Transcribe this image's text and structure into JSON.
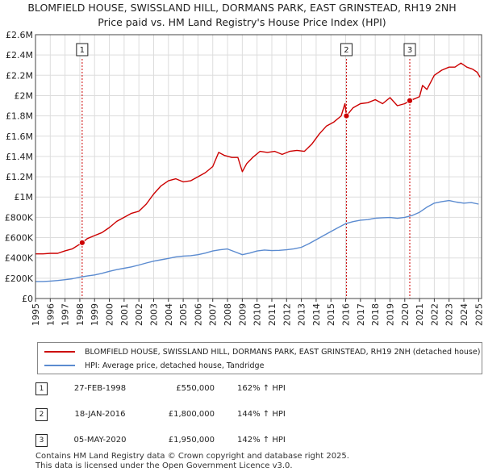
{
  "title_line1": "BLOMFIELD HOUSE, SWISSLAND HILL, DORMANS PARK, EAST GRINSTEAD, RH19 2NH",
  "title_line2": "Price paid vs. HM Land Registry's House Price Index (HPI)",
  "colors": {
    "property": "#cc0000",
    "hpi": "#5b8bd0",
    "marker_line": "#cc0000",
    "grid": "#dddddd"
  },
  "legend": {
    "property_label": "BLOMFIELD HOUSE, SWISSLAND HILL, DORMANS PARK, EAST GRINSTEAD, RH19 2NH (detached house)",
    "hpi_label": "HPI: Average price, detached house, Tandridge"
  },
  "transactions": [
    {
      "num": "1",
      "date": "27-FEB-1998",
      "price": "£550,000",
      "hpi": "162% ↑ HPI"
    },
    {
      "num": "2",
      "date": "18-JAN-2016",
      "price": "£1,800,000",
      "hpi": "144% ↑ HPI"
    },
    {
      "num": "3",
      "date": "05-MAY-2020",
      "price": "£1,950,000",
      "hpi": "142% ↑ HPI"
    }
  ],
  "footer_line1": "Contains HM Land Registry data © Crown copyright and database right 2025.",
  "footer_line2": "This data is licensed under the Open Government Licence v3.0.",
  "chart_data": {
    "type": "line",
    "xlim": [
      1995,
      2025.2
    ],
    "ylim": [
      0,
      2600000
    ],
    "x_ticks": [
      1995,
      1996,
      1997,
      1998,
      1999,
      2000,
      2001,
      2002,
      2003,
      2004,
      2005,
      2006,
      2007,
      2008,
      2009,
      2010,
      2011,
      2012,
      2013,
      2014,
      2015,
      2016,
      2017,
      2018,
      2019,
      2020,
      2021,
      2022,
      2023,
      2024,
      2025
    ],
    "y_ticks": [
      {
        "value": 0,
        "label": "£0"
      },
      {
        "value": 200000,
        "label": "£200K"
      },
      {
        "value": 400000,
        "label": "£400K"
      },
      {
        "value": 600000,
        "label": "£600K"
      },
      {
        "value": 800000,
        "label": "£800K"
      },
      {
        "value": 1000000,
        "label": "£1M"
      },
      {
        "value": 1200000,
        "label": "£1.2M"
      },
      {
        "value": 1400000,
        "label": "£1.4M"
      },
      {
        "value": 1600000,
        "label": "£1.6M"
      },
      {
        "value": 1800000,
        "label": "£1.8M"
      },
      {
        "value": 2000000,
        "label": "£2M"
      },
      {
        "value": 2200000,
        "label": "£2.2M"
      },
      {
        "value": 2400000,
        "label": "£2.4M"
      },
      {
        "value": 2600000,
        "label": "£2.6M"
      }
    ],
    "grid": true,
    "series": [
      {
        "name": "BLOMFIELD HOUSE, SWISSLAND HILL, DORMANS PARK, EAST GRINSTEAD, RH19 2NH (detached house)",
        "color": "#cc0000",
        "x": [
          1995.0,
          1995.5,
          1996.0,
          1996.5,
          1997.0,
          1997.5,
          1998.16,
          1998.5,
          1999.0,
          1999.5,
          2000.0,
          2000.5,
          2001.0,
          2001.5,
          2002.0,
          2002.5,
          2003.0,
          2003.5,
          2004.0,
          2004.5,
          2005.0,
          2005.5,
          2006.0,
          2006.5,
          2007.0,
          2007.4,
          2007.8,
          2008.3,
          2008.7,
          2009.0,
          2009.3,
          2009.7,
          2010.2,
          2010.7,
          2011.2,
          2011.7,
          2012.2,
          2012.7,
          2013.2,
          2013.7,
          2014.2,
          2014.7,
          2015.2,
          2015.7,
          2015.95,
          2016.05,
          2016.5,
          2017.0,
          2017.5,
          2018.0,
          2018.5,
          2019.0,
          2019.5,
          2020.0,
          2020.34,
          2020.7,
          2021.0,
          2021.2,
          2021.5,
          2022.0,
          2022.5,
          2023.0,
          2023.4,
          2023.8,
          2024.2,
          2024.6,
          2024.9,
          2025.1
        ],
        "values": [
          440000,
          440000,
          445000,
          445000,
          470000,
          490000,
          550000,
          590000,
          620000,
          650000,
          700000,
          760000,
          800000,
          840000,
          860000,
          930000,
          1030000,
          1110000,
          1160000,
          1180000,
          1150000,
          1160000,
          1200000,
          1240000,
          1300000,
          1440000,
          1410000,
          1390000,
          1390000,
          1250000,
          1330000,
          1390000,
          1450000,
          1440000,
          1450000,
          1420000,
          1450000,
          1460000,
          1450000,
          1520000,
          1620000,
          1700000,
          1740000,
          1800000,
          1920000,
          1800000,
          1880000,
          1920000,
          1930000,
          1960000,
          1920000,
          1980000,
          1900000,
          1920000,
          1950000,
          1970000,
          1990000,
          2100000,
          2060000,
          2200000,
          2250000,
          2280000,
          2280000,
          2320000,
          2280000,
          2260000,
          2230000,
          2180000
        ]
      },
      {
        "name": "HPI: Average price, detached house, Tandridge",
        "color": "#5b8bd0",
        "x": [
          1995.0,
          1995.5,
          1996.0,
          1996.5,
          1997.0,
          1997.5,
          1998.0,
          1998.5,
          1999.0,
          1999.5,
          2000.0,
          2000.5,
          2001.0,
          2001.5,
          2002.0,
          2002.5,
          2003.0,
          2003.5,
          2004.0,
          2004.5,
          2005.0,
          2005.5,
          2006.0,
          2006.5,
          2007.0,
          2007.5,
          2008.0,
          2008.5,
          2009.0,
          2009.5,
          2010.0,
          2010.5,
          2011.0,
          2011.5,
          2012.0,
          2012.5,
          2013.0,
          2013.5,
          2014.0,
          2014.5,
          2015.0,
          2015.5,
          2016.0,
          2016.5,
          2017.0,
          2017.5,
          2018.0,
          2018.5,
          2019.0,
          2019.5,
          2020.0,
          2020.5,
          2021.0,
          2021.5,
          2022.0,
          2022.5,
          2023.0,
          2023.5,
          2024.0,
          2024.5,
          2025.0
        ],
        "values": [
          168000,
          168000,
          172000,
          177000,
          185000,
          195000,
          210000,
          222000,
          232000,
          248000,
          268000,
          285000,
          298000,
          312000,
          330000,
          350000,
          368000,
          382000,
          395000,
          410000,
          418000,
          422000,
          432000,
          448000,
          468000,
          480000,
          488000,
          460000,
          432000,
          448000,
          468000,
          478000,
          472000,
          475000,
          480000,
          490000,
          505000,
          540000,
          580000,
          620000,
          660000,
          700000,
          738000,
          758000,
          772000,
          778000,
          792000,
          796000,
          798000,
          790000,
          800000,
          818000,
          850000,
          900000,
          940000,
          955000,
          965000,
          950000,
          940000,
          945000,
          930000
        ]
      }
    ],
    "markers": [
      {
        "label": "1",
        "x": 1998.16,
        "value": 550000
      },
      {
        "label": "2",
        "x": 2016.05,
        "value": 1800000
      },
      {
        "label": "3",
        "x": 2020.34,
        "value": 1950000
      }
    ]
  }
}
